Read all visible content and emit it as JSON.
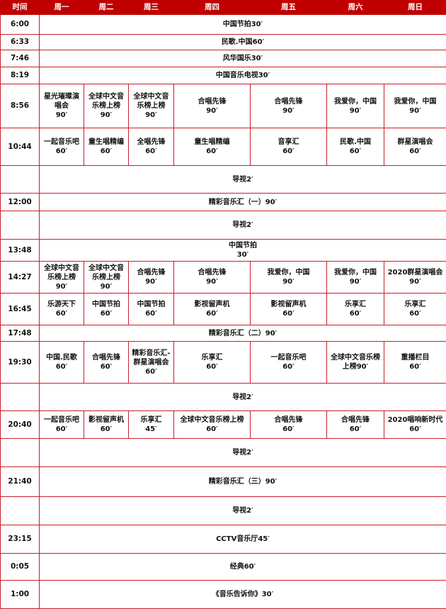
{
  "header": [
    "时间",
    "周一",
    "周二",
    "周三",
    "周四",
    "周五",
    "周六",
    "周日"
  ],
  "colors": {
    "header_bg": "#c00000",
    "border": "#c8202a"
  },
  "rows": [
    {
      "time": "6:00",
      "span": "中国节拍30′"
    },
    {
      "time": "6:33",
      "span": "民歌.中国60′"
    },
    {
      "time": "7:46",
      "span": "风华国乐30′"
    },
    {
      "time": "8:19",
      "span": "中国音乐电视30′"
    },
    {
      "time": "8:56",
      "cells": [
        "星光璀璨演\n唱会\n90′",
        "全球中文音\n乐榜上榜\n90′",
        "全球中文音\n乐榜上榜\n90′",
        "合唱先锋\n90′",
        "合唱先锋\n90′",
        "我爱你，中国\n90′",
        "我爱你，中国\n90′"
      ]
    },
    {
      "time": "10:44",
      "cells": [
        "一起音乐吧\n60′",
        "童生唱精编\n60′",
        "全唱先锋\n60′",
        "童生唱精编\n60′",
        "音享汇\n60′",
        "民歌.中国\n60′",
        "群星演唱会\n60′"
      ]
    },
    {
      "time": "",
      "span": "导视2′"
    },
    {
      "time": "12:00",
      "span": "精彩音乐汇（一）90′"
    },
    {
      "time": "",
      "span": "导视2′"
    },
    {
      "time": "13:48",
      "span": "中国节拍\n30′"
    },
    {
      "time": "14:27",
      "cells": [
        "全球中文音\n乐榜上榜\n90′",
        "全球中文音\n乐榜上榜\n90′",
        "合唱先锋\n90′",
        "合唱先锋\n90′",
        "我爱你，中国\n90′",
        "我爱你，中国\n90′",
        "2020群星演唱会\n90′"
      ]
    },
    {
      "time": "16:45",
      "cells": [
        "乐游天下\n60′",
        "中国节拍\n60′",
        "中国节拍\n60′",
        "影视留声机\n60′",
        "影视留声机\n60′",
        "乐享汇\n60′",
        "乐享汇\n60′"
      ]
    },
    {
      "time": "17:48",
      "span": "精彩音乐汇（二）90′"
    },
    {
      "time": "19:30",
      "cells": [
        "中国.民歌\n60′",
        "合唱先锋\n60′",
        "精彩音乐汇-\n群星演唱会\n60′",
        "乐享汇\n60′",
        "一起音乐吧\n60′",
        "全球中文音乐榜\n上榜90′",
        "重播栏目\n60′"
      ]
    },
    {
      "time": "",
      "span": "导视2′"
    },
    {
      "time": "20:40",
      "cells": [
        "一起音乐吧\n60′",
        "影视留声机\n60′",
        "乐享汇\n45′",
        "全球中文音乐榜上榜\n60′",
        "合唱先锋\n60′",
        "合唱先锋\n60′",
        "2020唱响新时代\n60′"
      ]
    },
    {
      "time": "",
      "span": "导视2′"
    },
    {
      "time": "21:40",
      "span": "精彩音乐汇（三）90′"
    },
    {
      "time": "",
      "span": "导视2′"
    },
    {
      "time": "23:15",
      "span": "CCTV音乐厅45′"
    },
    {
      "time": "0:05",
      "span": "经典60′"
    },
    {
      "time": "1:00",
      "span": "《音乐告诉你》30′"
    }
  ]
}
